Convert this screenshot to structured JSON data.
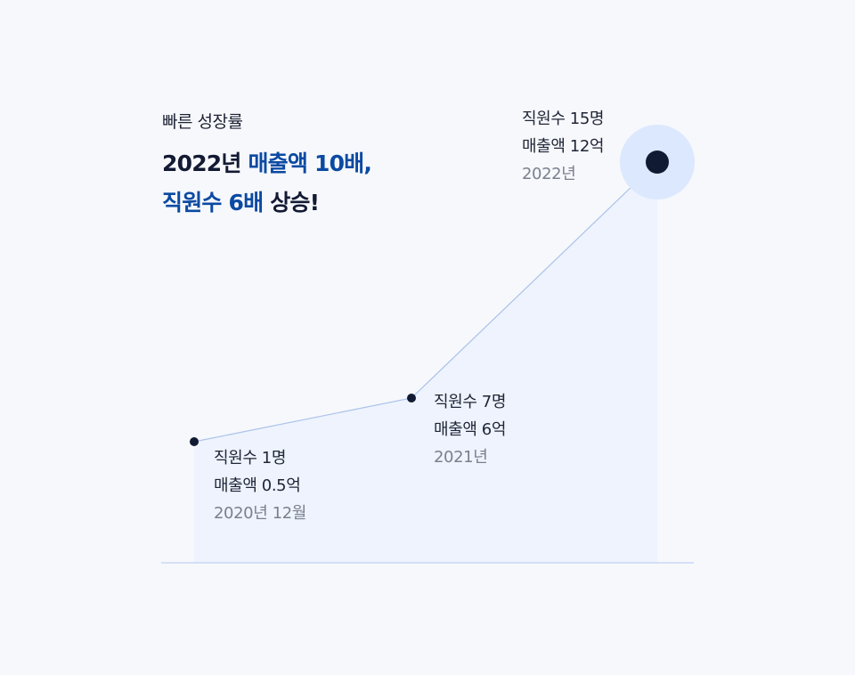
{
  "header": {
    "eyebrow": "빠른 성장률",
    "line1_plain": "2022년 ",
    "line1_accent": "매출액 10배,",
    "line2_accent": "직원수 6배",
    "line2_plain": " 상승!"
  },
  "colors": {
    "accent": "#0b4aa2",
    "point": "#111a33",
    "line": "#a9c2ea",
    "area": "#eef3fd",
    "halo": "#dce8fd",
    "baseline": "#c9d8f3"
  },
  "chart_data": {
    "type": "line",
    "points": [
      {
        "employees": "직원수 1명",
        "revenue": "매출액 0.5억",
        "period": "2020년 12월"
      },
      {
        "employees": "직원수 7명",
        "revenue": "매출액 6억",
        "period": "2021년"
      },
      {
        "employees": "직원수 15명",
        "revenue": "매출액 12억",
        "period": "2022년"
      }
    ],
    "grid": false,
    "legend": "none"
  }
}
